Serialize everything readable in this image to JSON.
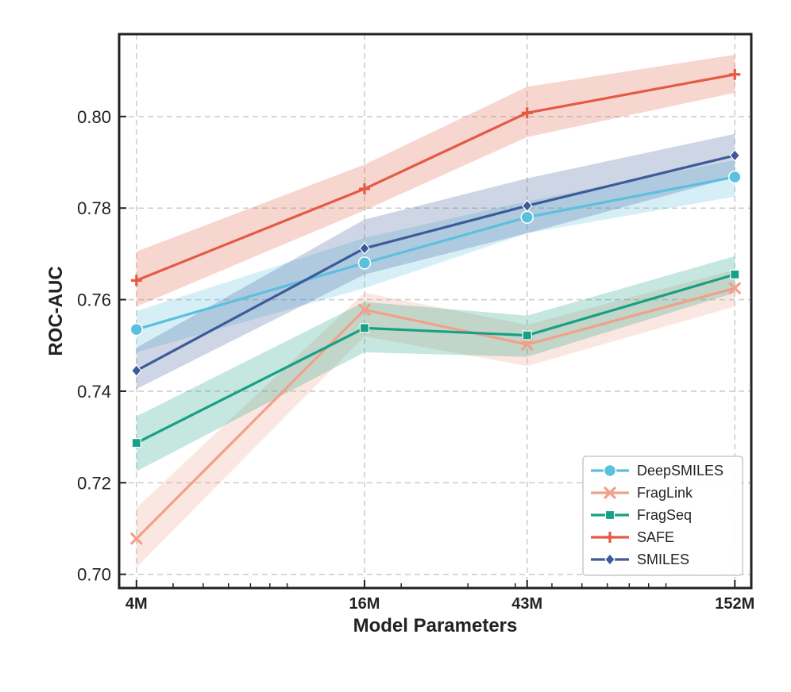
{
  "chart_data": {
    "type": "line",
    "title": "",
    "xlabel": "Model Parameters",
    "ylabel": "ROC-AUC",
    "x_scale": "log",
    "x_ticks": [
      4,
      16,
      43,
      152
    ],
    "x_tick_labels": [
      "4M",
      "16M",
      "43M",
      "152M"
    ],
    "x_minor_ticks": [
      5,
      6,
      7,
      8,
      9,
      10,
      20,
      30,
      40,
      50,
      60,
      70,
      80,
      90,
      100
    ],
    "ylim": [
      0.697,
      0.818
    ],
    "y_ticks": [
      0.7,
      0.72,
      0.74,
      0.76,
      0.78,
      0.8
    ],
    "y_tick_labels": [
      "0.70",
      "0.72",
      "0.74",
      "0.76",
      "0.78",
      "0.80"
    ],
    "grid": true,
    "legend_position": "bottom-right",
    "x": [
      4,
      16,
      43,
      152
    ],
    "series": [
      {
        "name": "DeepSMILES",
        "color": "#5bc0de",
        "marker": "circle",
        "values": [
          0.7535,
          0.768,
          0.778,
          0.7868
        ],
        "lower": [
          0.7485,
          0.7625,
          0.7745,
          0.7825
        ],
        "upper": [
          0.7575,
          0.7735,
          0.7815,
          0.7905
        ]
      },
      {
        "name": "FragLink",
        "color": "#f1a089",
        "marker": "x",
        "values": [
          0.7078,
          0.7578,
          0.7502,
          0.7625
        ],
        "lower": [
          0.7015,
          0.752,
          0.7455,
          0.7585
        ],
        "upper": [
          0.7145,
          0.7615,
          0.7545,
          0.7665
        ]
      },
      {
        "name": "FragSeq",
        "color": "#16a085",
        "marker": "square",
        "values": [
          0.7287,
          0.7538,
          0.7522,
          0.7655
        ],
        "lower": [
          0.7225,
          0.7485,
          0.7475,
          0.7615
        ],
        "upper": [
          0.7345,
          0.7595,
          0.7565,
          0.7695
        ]
      },
      {
        "name": "SAFE",
        "color": "#e45a44",
        "marker": "plus",
        "values": [
          0.7642,
          0.7842,
          0.8008,
          0.8092
        ],
        "lower": [
          0.7585,
          0.7795,
          0.7955,
          0.8052
        ],
        "upper": [
          0.7705,
          0.7895,
          0.8065,
          0.8135
        ]
      },
      {
        "name": "SMILES",
        "color": "#3d5a99",
        "marker": "diamond",
        "values": [
          0.7445,
          0.7712,
          0.7805,
          0.7915
        ],
        "lower": [
          0.7405,
          0.7655,
          0.7745,
          0.7868
        ],
        "upper": [
          0.7495,
          0.7775,
          0.7865,
          0.7962
        ]
      }
    ]
  }
}
